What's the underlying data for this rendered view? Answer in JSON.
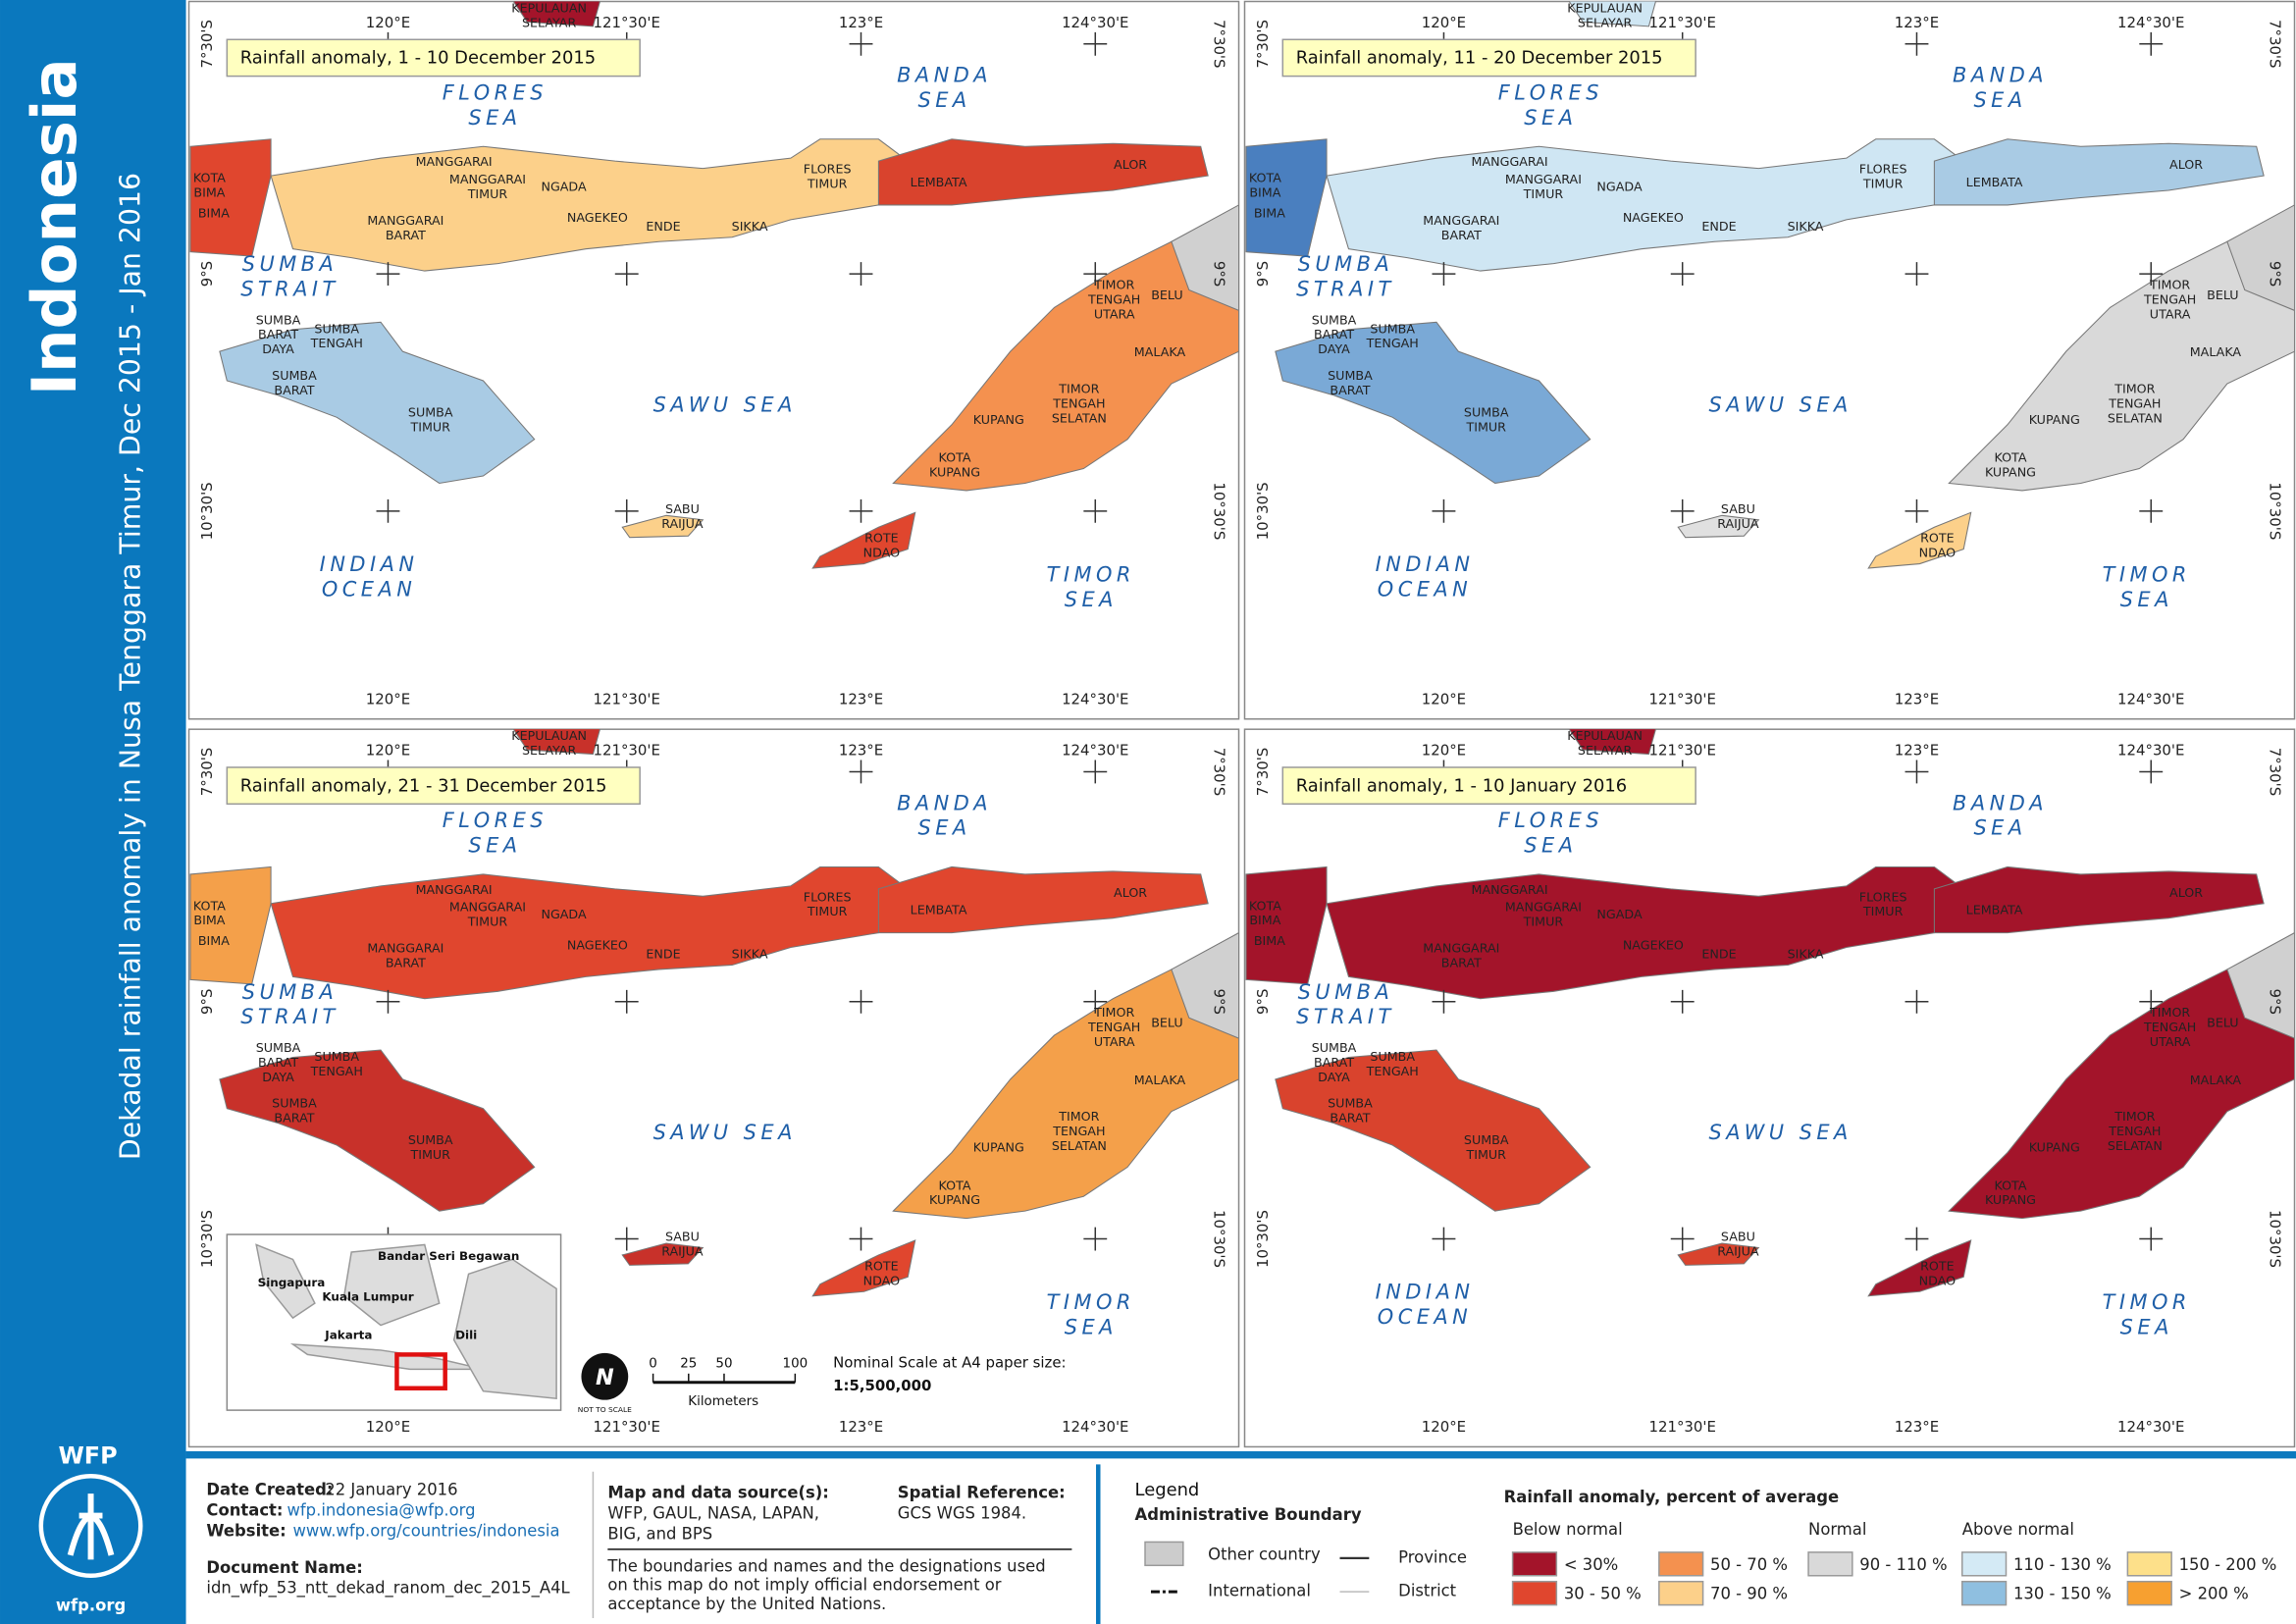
{
  "sidebar": {
    "title": "Indonesia",
    "subtitle": "Dekadal rainfall anomaly in Nusa Tenggara Timur, Dec 2015 - Jan 2016",
    "logo": "WFP",
    "site": "wfp.org"
  },
  "grid": {
    "lon": [
      "120°E",
      "121°30'E",
      "123°E",
      "124°30'E"
    ],
    "lat": [
      "7°30'S",
      "9°S",
      "10°30'S"
    ]
  },
  "seas": [
    [
      "FLORES",
      "SEA"
    ],
    [
      "BANDA",
      "SEA"
    ],
    [
      "SUMBA",
      "STRAIT"
    ],
    [
      "SAWU SEA"
    ],
    [
      "INDIAN",
      "OCEAN"
    ],
    [
      "TIMOR",
      "SEA"
    ]
  ],
  "places": [
    [
      "KEPULAUAN",
      "SELAYAR"
    ],
    [
      "KOTA",
      "BIMA"
    ],
    [
      "BIMA"
    ],
    [
      "MANGGARAI"
    ],
    [
      "MANGGARAI",
      "TIMUR"
    ],
    [
      "NGADA"
    ],
    [
      "MANGGARAI",
      "BARAT"
    ],
    [
      "NAGEKEO"
    ],
    [
      "ENDE"
    ],
    [
      "SIKKA"
    ],
    [
      "FLORES",
      "TIMUR"
    ],
    [
      "LEMBATA"
    ],
    [
      "ALOR"
    ],
    [
      "TIMOR",
      "TENGAH",
      "UTARA"
    ],
    [
      "BELU"
    ],
    [
      "MALAKA"
    ],
    [
      "SUMBA",
      "BARAT",
      "DAYA"
    ],
    [
      "SUMBA",
      "TENGAH"
    ],
    [
      "SUMBA",
      "BARAT"
    ],
    [
      "SUMBA",
      "TIMUR"
    ],
    [
      "TIMOR",
      "TENGAH",
      "SELATAN"
    ],
    [
      "KUPANG"
    ],
    [
      "KOTA",
      "KUPANG"
    ],
    [
      "SABU",
      "RAIJUA"
    ],
    [
      "ROTE",
      "NDAO"
    ]
  ],
  "panels": [
    {
      "title": "Rainfall anomaly, 1 - 10 December 2015"
    },
    {
      "title": "Rainfall anomaly, 11 - 20 December 2015"
    },
    {
      "title": "Rainfall anomaly, 21 - 31 December 2015"
    },
    {
      "title": "Rainfall anomaly, 1 - 10 January 2016"
    }
  ],
  "inset": {
    "places": [
      "Bandar Seri Begawan",
      "Singapura",
      "Kuala Lumpur",
      "Jakarta",
      "Dili"
    ]
  },
  "scale": {
    "ticks": [
      0,
      25,
      50,
      100
    ],
    "unit": "Kilometers",
    "north": "N",
    "note": "NOT TO SCALE",
    "caption": "Nominal Scale at A4 paper size:",
    "ratio": "1:5,500,000"
  },
  "footer": {
    "date": {
      "label": "Date Created:",
      "value": "22 January 2016"
    },
    "contact": {
      "label": "Contact:",
      "value": "wfp.indonesia@wfp.org"
    },
    "website": {
      "label": "Website:",
      "value": "www.wfp.org/countries/indonesia"
    },
    "document": {
      "label": "Document Name:",
      "value": "idn_wfp_53_ntt_dekad_ranom_dec_2015_A4L"
    },
    "source": {
      "label": "Map and data source(s):",
      "lines": [
        "WFP, GAUL, NASA, LAPAN,",
        "BIG, and BPS"
      ]
    },
    "spatial": {
      "label": "Spatial Reference:",
      "value": "GCS WGS 1984."
    },
    "disclaimer": [
      "The boundaries and names and the designations used",
      "on this map do not imply official endorsement or",
      "acceptance by the United Nations."
    ]
  },
  "legend": {
    "title": "Legend",
    "admin": {
      "title": "Administrative Boundary",
      "items": [
        "Other country",
        "International",
        "Province",
        "District"
      ]
    },
    "rain": {
      "title": "Rainfall anomaly, percent of average",
      "groups": [
        "Below normal",
        "Normal",
        "Above normal"
      ],
      "classes": [
        "< 30%",
        "30 - 50 %",
        "50 - 70 %",
        "70 - 90 %",
        "90 - 110 %",
        "110 - 130 %",
        "130 - 150 %",
        "150 - 200 %",
        "> 200 %"
      ]
    }
  }
}
